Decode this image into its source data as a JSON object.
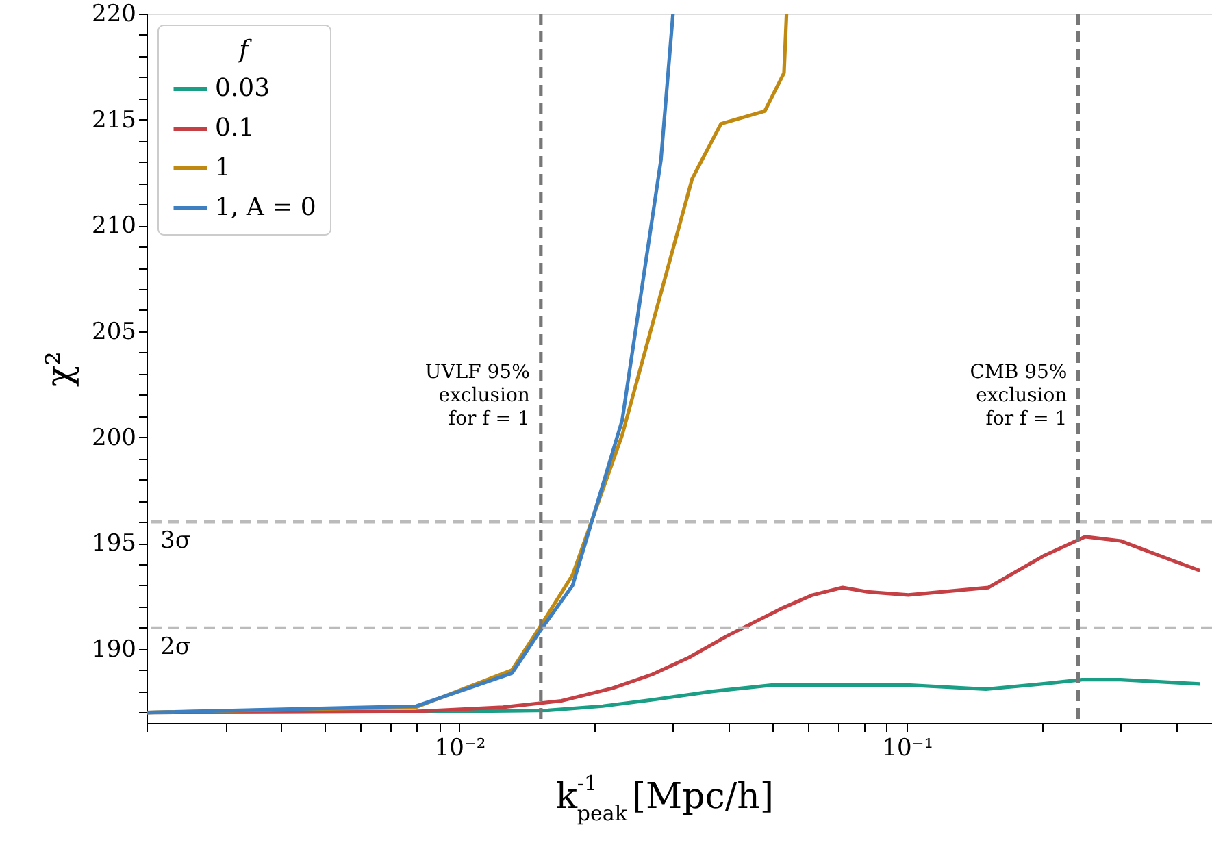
{
  "chart_data": {
    "type": "line",
    "xlabel": "k$_{peak}$$^{-1}$ [Mpc/h]",
    "ylabel": "χ²",
    "legend_title": "f",
    "legend": "top left",
    "grid": false,
    "log": "x",
    "line_style": "solid",
    "marker": "none",
    "xlim": [
      0.002,
      0.48
    ],
    "ylim": [
      186.5,
      220
    ],
    "xticks": [
      {
        "value": 0.002,
        "label": null
      },
      {
        "value": 0.003,
        "label": null
      },
      {
        "value": 0.004,
        "label": null
      },
      {
        "value": 0.005,
        "label": null
      },
      {
        "value": 0.006,
        "label": null
      },
      {
        "value": 0.007,
        "label": null
      },
      {
        "value": 0.008,
        "label": null
      },
      {
        "value": 0.009,
        "label": null
      },
      {
        "value": 0.01,
        "label": "10⁻²"
      },
      {
        "value": 0.02,
        "label": null
      },
      {
        "value": 0.03,
        "label": null
      },
      {
        "value": 0.04,
        "label": null
      },
      {
        "value": 0.05,
        "label": null
      },
      {
        "value": 0.06,
        "label": null
      },
      {
        "value": 0.07,
        "label": null
      },
      {
        "value": 0.08,
        "label": null
      },
      {
        "value": 0.09,
        "label": null
      },
      {
        "value": 0.1,
        "label": "10⁻¹"
      },
      {
        "value": 0.2,
        "label": null
      },
      {
        "value": 0.3,
        "label": null
      },
      {
        "value": 0.4,
        "label": null
      }
    ],
    "yticks": [
      {
        "value": 187,
        "label": null
      },
      {
        "value": 188,
        "label": null
      },
      {
        "value": 189,
        "label": null
      },
      190,
      {
        "value": 191,
        "label": null
      },
      {
        "value": 192,
        "label": null
      },
      {
        "value": 193,
        "label": null
      },
      {
        "value": 194,
        "label": null
      },
      195,
      {
        "value": 196,
        "label": null
      },
      {
        "value": 197,
        "label": null
      },
      {
        "value": 198,
        "label": null
      },
      {
        "value": 199,
        "label": null
      },
      200,
      {
        "value": 201,
        "label": null
      },
      {
        "value": 202,
        "label": null
      },
      {
        "value": 203,
        "label": null
      },
      {
        "value": 204,
        "label": null
      },
      205,
      {
        "value": 206,
        "label": null
      },
      {
        "value": 207,
        "label": null
      },
      {
        "value": 208,
        "label": null
      },
      {
        "value": 209,
        "label": null
      },
      210,
      {
        "value": 211,
        "label": null
      },
      {
        "value": 212,
        "label": null
      },
      {
        "value": 213,
        "label": null
      },
      {
        "value": 214,
        "label": null
      },
      215,
      {
        "value": 216,
        "label": null
      },
      {
        "value": 217,
        "label": null
      },
      {
        "value": 218,
        "label": null
      },
      {
        "value": 219,
        "label": null
      },
      220
    ],
    "series": [
      {
        "name": "0.03",
        "color": "#1b9e86",
        "x": [
          0.002,
          0.01,
          0.0158,
          0.0209,
          0.027,
          0.0368,
          0.0502,
          0.1,
          0.15,
          0.2,
          0.246,
          0.3,
          0.451
        ],
        "values": [
          187.0,
          187.05,
          187.1,
          187.3,
          187.6,
          188.0,
          188.3,
          188.3,
          188.1,
          188.35,
          188.55,
          188.55,
          188.35
        ]
      },
      {
        "name": "0.1",
        "color": "#c44044",
        "x": [
          0.002,
          0.008,
          0.0125,
          0.0169,
          0.022,
          0.027,
          0.0326,
          0.0395,
          0.0523,
          0.0615,
          0.0718,
          0.0815,
          0.1006,
          0.152,
          0.202,
          0.25,
          0.3,
          0.389,
          0.451
        ],
        "values": [
          187.0,
          187.05,
          187.25,
          187.55,
          188.15,
          188.8,
          189.6,
          190.6,
          191.9,
          192.55,
          192.9,
          192.7,
          192.55,
          192.9,
          194.4,
          195.3,
          195.1,
          194.2,
          193.7
        ]
      },
      {
        "name": "1",
        "color": "#c08a12",
        "x": [
          0.002,
          0.008,
          0.0131,
          0.0152,
          0.0179,
          0.0231,
          0.0331,
          0.0384,
          0.0481,
          0.0531,
          0.0538
        ],
        "values": [
          187.0,
          187.25,
          189.0,
          191.1,
          193.5,
          200.1,
          212.2,
          214.8,
          215.4,
          217.2,
          220
        ]
      },
      {
        "name": "1, A = 0",
        "color": "#3d7fc1",
        "x": [
          0.002,
          0.008,
          0.0131,
          0.0152,
          0.0179,
          0.0231,
          0.0282,
          0.03
        ],
        "values": [
          187.0,
          187.3,
          188.85,
          190.9,
          193.0,
          200.8,
          213.1,
          220
        ]
      }
    ],
    "ref_lines": [
      {
        "axis": "y",
        "value": 196,
        "label": "3σ",
        "color": "#bbbbbb",
        "line_style": "dashed"
      },
      {
        "axis": "y",
        "value": 191,
        "label": "2σ",
        "color": "#bbbbbb",
        "line_style": "dashed"
      },
      {
        "axis": "x",
        "value": 0.0152,
        "color": "#777777",
        "line_style": "dashed"
      },
      {
        "axis": "x",
        "value": 0.241,
        "color": "#777777",
        "line_style": "dashed"
      }
    ],
    "annotations": [
      {
        "text": "UVLF 95%\nexclusion\nfor f = 1",
        "x": 0.0152,
        "y": 203.5
      },
      {
        "text": "CMB 95%\nexclusion\nfor f = 1",
        "x": 0.241,
        "y": 203.5
      }
    ]
  }
}
